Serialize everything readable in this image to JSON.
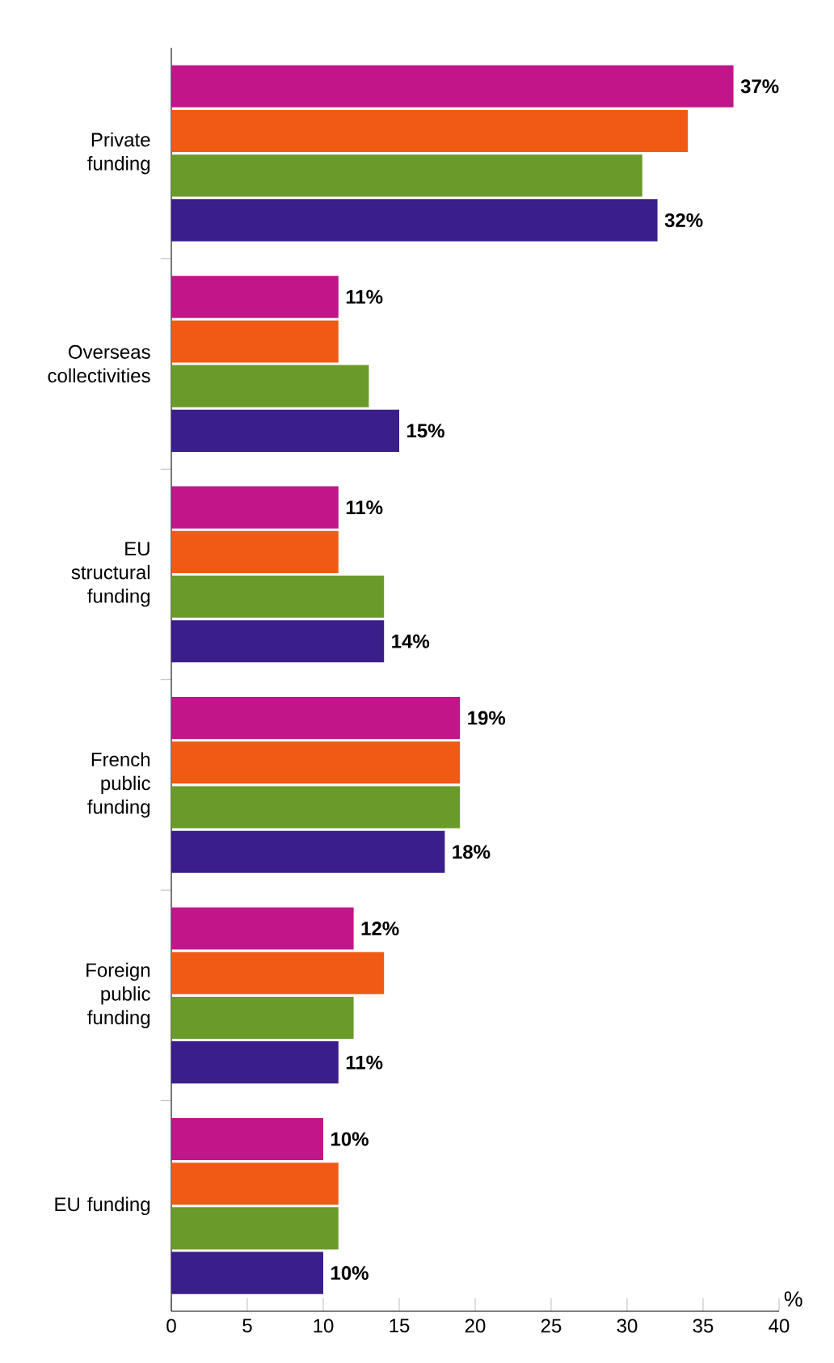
{
  "chart_data": {
    "type": "bar",
    "orientation": "horizontal",
    "xlabel": "%",
    "categories": [
      "Private funding",
      "Overseas collectivities",
      "EU structural funding",
      "French public funding",
      "Foreign public funding",
      "EU funding"
    ],
    "series": [
      {
        "color": "#c0168a",
        "values": [
          37,
          11,
          11,
          19,
          12,
          10
        ],
        "value_labels": [
          "37%",
          "11%",
          "11%",
          "19%",
          "12%",
          "10%"
        ]
      },
      {
        "color": "#f05a14",
        "values": [
          34,
          11,
          11,
          19,
          14,
          11
        ]
      },
      {
        "color": "#6a9a2a",
        "values": [
          31,
          13,
          14,
          19,
          12,
          11
        ]
      },
      {
        "color": "#3a1e8a",
        "values": [
          32,
          15,
          14,
          18,
          11,
          10
        ],
        "value_labels": [
          "32%",
          "15%",
          "14%",
          "18%",
          "11%",
          "10%"
        ]
      }
    ],
    "xlim": [
      0,
      40
    ],
    "xticks": [
      0,
      5,
      10,
      15,
      20,
      25,
      30,
      35,
      40
    ]
  }
}
